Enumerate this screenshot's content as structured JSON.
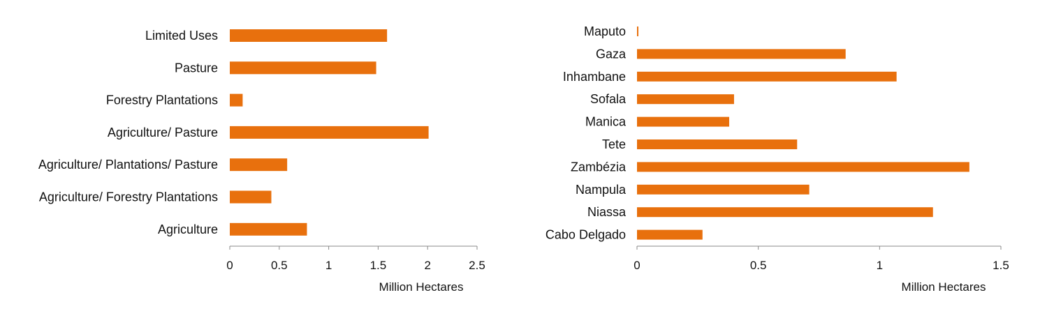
{
  "chart_data": [
    {
      "type": "bar",
      "orientation": "horizontal",
      "categories": [
        "Limited Uses",
        "Pasture",
        "Forestry Plantations",
        "Agriculture/ Pasture",
        "Agriculture/ Plantations/ Pasture",
        "Agriculture/ Forestry Plantations",
        "Agriculture"
      ],
      "values": [
        1.59,
        1.48,
        0.13,
        2.01,
        0.58,
        0.42,
        0.78
      ],
      "xlabel": "Million Hectares",
      "ylabel": "",
      "xlim": [
        0,
        2.5
      ],
      "xticks": [
        0,
        0.5,
        1,
        1.5,
        2,
        2.5
      ],
      "xtick_labels": [
        "0",
        "0.5",
        "1",
        "1.5",
        "2",
        "2.5"
      ],
      "grid": false,
      "bar_color": "#E8700D"
    },
    {
      "type": "bar",
      "orientation": "horizontal",
      "categories": [
        "Maputo",
        "Gaza",
        "Inhambane",
        "Sofala",
        "Manica",
        "Tete",
        "Zambézia",
        "Nampula",
        "Niassa",
        "Cabo Delgado"
      ],
      "values": [
        0.005,
        0.86,
        1.07,
        0.4,
        0.38,
        0.66,
        1.37,
        0.71,
        1.22,
        0.27
      ],
      "xlabel": "Million Hectares",
      "ylabel": "",
      "xlim": [
        0,
        1.5
      ],
      "xticks": [
        0,
        0.5,
        1,
        1.5
      ],
      "xtick_labels": [
        "0",
        "0.5",
        "1",
        "1.5"
      ],
      "grid": false,
      "bar_color": "#E8700D"
    }
  ]
}
